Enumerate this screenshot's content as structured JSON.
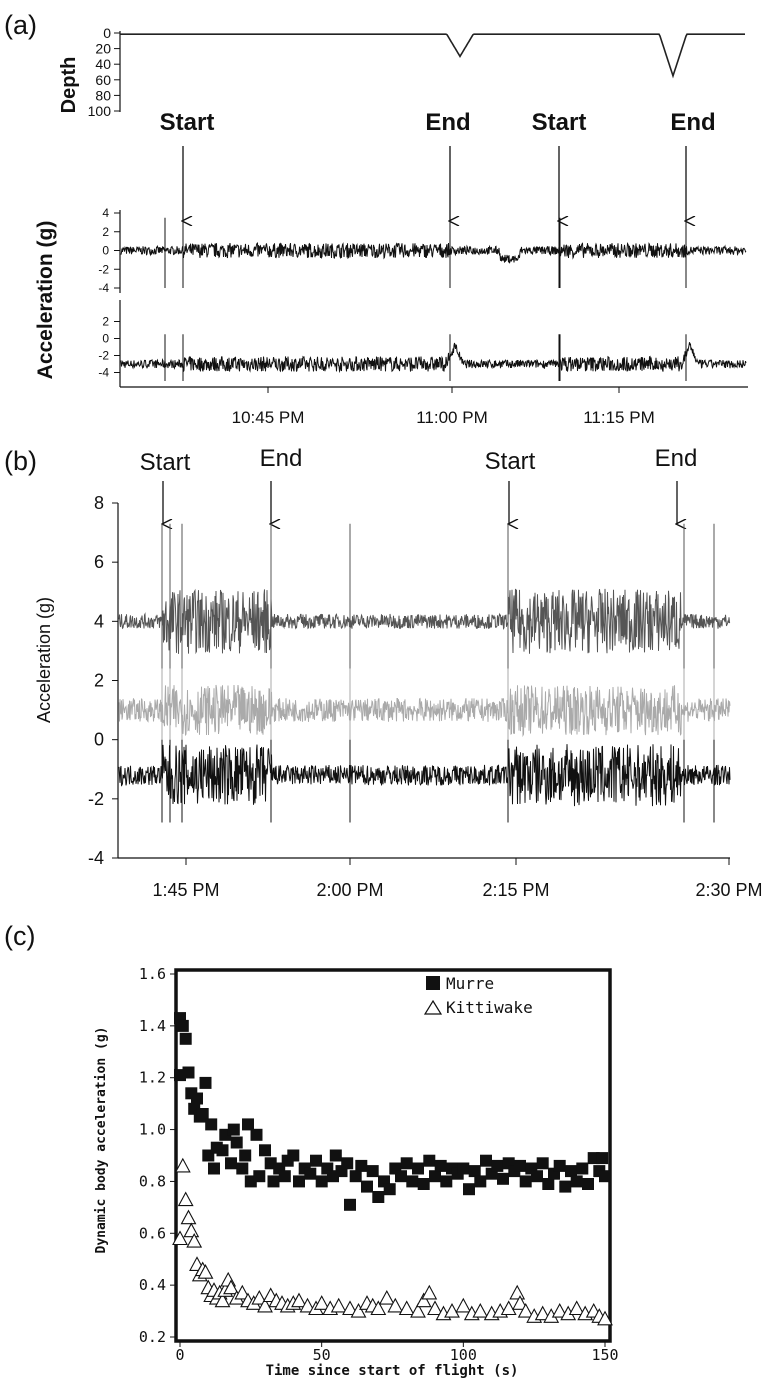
{
  "panel_a": {
    "panel_label": "(a)",
    "depth_axis": {
      "label": "Depth",
      "ticks": [
        "0",
        "20",
        "40",
        "60",
        "80",
        "100"
      ],
      "ylim": [
        0,
        100
      ],
      "dives": [
        {
          "time": "11:01 PM",
          "max_depth": 30
        },
        {
          "time": "11:22 PM",
          "max_depth": 55
        }
      ]
    },
    "acc_axis": {
      "label": "Acceleration (g)",
      "upper_ticks": [
        "4",
        "2",
        "0",
        "-2",
        "-4"
      ],
      "lower_ticks": [
        "2",
        "0",
        "-2",
        "-4"
      ],
      "upper_baseline": 0,
      "lower_baseline": -3
    },
    "x_ticks": [
      "10:45 PM",
      "11:00 PM",
      "11:15 PM"
    ],
    "annotations": [
      "Start",
      "End",
      "Start",
      "End"
    ]
  },
  "panel_b": {
    "panel_label": "(b)",
    "ylabel": "Acceleration (g)",
    "y_ticks": [
      "8",
      "6",
      "4",
      "2",
      "0",
      "-2",
      "-4"
    ],
    "ylim": [
      -4,
      8
    ],
    "x_ticks": [
      "1:45 PM",
      "2:00 PM",
      "2:15 PM",
      "2:30 PM"
    ],
    "annotations": [
      "Start",
      "End",
      "Start",
      "End"
    ],
    "series_baselines": [
      4,
      1,
      -1.2
    ]
  },
  "chart_data": {
    "type": "scatter",
    "panel_label": "(c)",
    "xlabel": "Time since start of flight (s)",
    "ylabel": "Dynamic body acceleration (g)",
    "xlim": [
      0,
      150
    ],
    "ylim": [
      0.2,
      1.6
    ],
    "x_ticks": [
      "0",
      "50",
      "100",
      "150"
    ],
    "y_ticks": [
      "0.2",
      "0.4",
      "0.6",
      "0.8",
      "1.0",
      "1.2",
      "1.4",
      "1.6"
    ],
    "legend_position": "top-right",
    "series": [
      {
        "name": "Murre",
        "marker": "filled-square",
        "points": [
          [
            0,
            1.43
          ],
          [
            0,
            1.21
          ],
          [
            1,
            1.4
          ],
          [
            2,
            1.35
          ],
          [
            3,
            1.22
          ],
          [
            4,
            1.14
          ],
          [
            5,
            1.08
          ],
          [
            6,
            1.12
          ],
          [
            7,
            1.05
          ],
          [
            8,
            1.06
          ],
          [
            9,
            1.18
          ],
          [
            10,
            0.9
          ],
          [
            11,
            1.02
          ],
          [
            12,
            0.85
          ],
          [
            13,
            0.93
          ],
          [
            15,
            0.92
          ],
          [
            16,
            0.98
          ],
          [
            18,
            0.87
          ],
          [
            19,
            1.0
          ],
          [
            20,
            0.95
          ],
          [
            22,
            0.85
          ],
          [
            23,
            0.9
          ],
          [
            24,
            1.02
          ],
          [
            25,
            0.8
          ],
          [
            27,
            0.98
          ],
          [
            28,
            0.82
          ],
          [
            30,
            0.92
          ],
          [
            32,
            0.87
          ],
          [
            33,
            0.8
          ],
          [
            35,
            0.85
          ],
          [
            37,
            0.82
          ],
          [
            38,
            0.88
          ],
          [
            40,
            0.9
          ],
          [
            42,
            0.8
          ],
          [
            44,
            0.85
          ],
          [
            46,
            0.83
          ],
          [
            48,
            0.88
          ],
          [
            50,
            0.8
          ],
          [
            52,
            0.85
          ],
          [
            54,
            0.82
          ],
          [
            55,
            0.9
          ],
          [
            57,
            0.84
          ],
          [
            59,
            0.87
          ],
          [
            60,
            0.71
          ],
          [
            62,
            0.82
          ],
          [
            64,
            0.86
          ],
          [
            66,
            0.78
          ],
          [
            68,
            0.84
          ],
          [
            70,
            0.74
          ],
          [
            72,
            0.8
          ],
          [
            74,
            0.77
          ],
          [
            76,
            0.85
          ],
          [
            78,
            0.82
          ],
          [
            80,
            0.87
          ],
          [
            82,
            0.8
          ],
          [
            84,
            0.85
          ],
          [
            86,
            0.79
          ],
          [
            88,
            0.88
          ],
          [
            90,
            0.82
          ],
          [
            92,
            0.86
          ],
          [
            94,
            0.8
          ],
          [
            96,
            0.85
          ],
          [
            98,
            0.83
          ],
          [
            100,
            0.85
          ],
          [
            102,
            0.77
          ],
          [
            104,
            0.84
          ],
          [
            106,
            0.8
          ],
          [
            108,
            0.88
          ],
          [
            110,
            0.83
          ],
          [
            112,
            0.86
          ],
          [
            114,
            0.81
          ],
          [
            116,
            0.87
          ],
          [
            118,
            0.84
          ],
          [
            120,
            0.86
          ],
          [
            122,
            0.8
          ],
          [
            124,
            0.85
          ],
          [
            126,
            0.82
          ],
          [
            128,
            0.87
          ],
          [
            130,
            0.79
          ],
          [
            132,
            0.83
          ],
          [
            134,
            0.86
          ],
          [
            136,
            0.78
          ],
          [
            138,
            0.84
          ],
          [
            140,
            0.8
          ],
          [
            142,
            0.85
          ],
          [
            144,
            0.79
          ],
          [
            146,
            0.89
          ],
          [
            148,
            0.84
          ],
          [
            149,
            0.89
          ],
          [
            150,
            0.82
          ]
        ]
      },
      {
        "name": "Kittiwake",
        "marker": "open-triangle",
        "points": [
          [
            0,
            0.58
          ],
          [
            1,
            0.86
          ],
          [
            2,
            0.73
          ],
          [
            3,
            0.66
          ],
          [
            4,
            0.61
          ],
          [
            5,
            0.57
          ],
          [
            6,
            0.48
          ],
          [
            7,
            0.44
          ],
          [
            8,
            0.46
          ],
          [
            9,
            0.45
          ],
          [
            10,
            0.39
          ],
          [
            11,
            0.36
          ],
          [
            12,
            0.38
          ],
          [
            13,
            0.35
          ],
          [
            14,
            0.37
          ],
          [
            15,
            0.34
          ],
          [
            16,
            0.38
          ],
          [
            17,
            0.42
          ],
          [
            18,
            0.39
          ],
          [
            20,
            0.35
          ],
          [
            22,
            0.37
          ],
          [
            24,
            0.34
          ],
          [
            26,
            0.33
          ],
          [
            28,
            0.35
          ],
          [
            30,
            0.32
          ],
          [
            32,
            0.36
          ],
          [
            34,
            0.34
          ],
          [
            36,
            0.33
          ],
          [
            38,
            0.32
          ],
          [
            40,
            0.33
          ],
          [
            42,
            0.34
          ],
          [
            45,
            0.32
          ],
          [
            48,
            0.31
          ],
          [
            50,
            0.33
          ],
          [
            53,
            0.31
          ],
          [
            56,
            0.32
          ],
          [
            60,
            0.31
          ],
          [
            63,
            0.3
          ],
          [
            66,
            0.33
          ],
          [
            68,
            0.32
          ],
          [
            70,
            0.31
          ],
          [
            73,
            0.35
          ],
          [
            76,
            0.32
          ],
          [
            80,
            0.31
          ],
          [
            84,
            0.3
          ],
          [
            86,
            0.34
          ],
          [
            88,
            0.37
          ],
          [
            90,
            0.31
          ],
          [
            93,
            0.29
          ],
          [
            96,
            0.3
          ],
          [
            100,
            0.32
          ],
          [
            103,
            0.29
          ],
          [
            106,
            0.3
          ],
          [
            110,
            0.29
          ],
          [
            113,
            0.3
          ],
          [
            116,
            0.31
          ],
          [
            119,
            0.37
          ],
          [
            120,
            0.33
          ],
          [
            122,
            0.3
          ],
          [
            125,
            0.28
          ],
          [
            128,
            0.29
          ],
          [
            131,
            0.28
          ],
          [
            134,
            0.3
          ],
          [
            137,
            0.29
          ],
          [
            140,
            0.31
          ],
          [
            143,
            0.29
          ],
          [
            146,
            0.3
          ],
          [
            148,
            0.28
          ],
          [
            150,
            0.27
          ]
        ]
      }
    ]
  }
}
